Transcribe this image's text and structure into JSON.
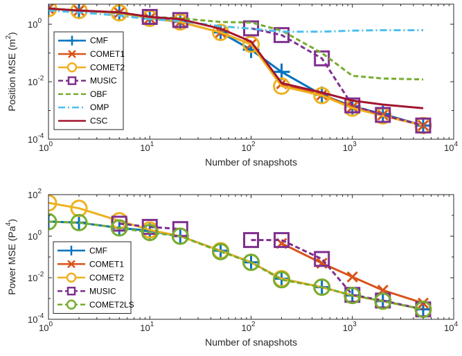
{
  "chart_data": [
    {
      "type": "line",
      "xlabel": "Number of snapshots",
      "ylabel": "Position MSE (m",
      "ylabel_unit_exp": "2",
      "ylabel_close": ")",
      "xscale": "log",
      "yscale": "log",
      "xlim": [
        1,
        10000
      ],
      "ylim": [
        0.0001,
        5
      ],
      "xticks": [
        {
          "base": "10",
          "exp": "0",
          "value": 1
        },
        {
          "base": "10",
          "exp": "1",
          "value": 10
        },
        {
          "base": "10",
          "exp": "2",
          "value": 100
        },
        {
          "base": "10",
          "exp": "3",
          "value": 1000
        },
        {
          "base": "10",
          "exp": "4",
          "value": 10000
        }
      ],
      "yticks": [
        {
          "base": "10",
          "exp": "0",
          "value": 1
        },
        {
          "base": "10",
          "exp": "-2",
          "value": 0.01
        },
        {
          "base": "10",
          "exp": "-4",
          "value": 0.0001
        }
      ],
      "grid": false,
      "legend_position": "bottom-left",
      "x": [
        1,
        2,
        5,
        10,
        20,
        50,
        100,
        200,
        500,
        1000,
        2000,
        5000
      ],
      "series": [
        {
          "name": "CMF",
          "color": "#0072bd",
          "dash": "solid",
          "marker": "plus",
          "values": [
            3.5,
            3.0,
            2.5,
            1.6,
            1.2,
            0.52,
            0.13,
            0.022,
            0.0035,
            0.0014,
            0.00075,
            0.0003
          ]
        },
        {
          "name": "COMET1",
          "color": "#d95319",
          "dash": "solid",
          "marker": "x",
          "values": [
            3.5,
            3.0,
            2.5,
            1.6,
            1.2,
            0.52,
            0.2,
            0.0085,
            0.0035,
            0.0013,
            0.0007,
            0.0003
          ]
        },
        {
          "name": "COMET2",
          "color": "#edb120",
          "dash": "solid",
          "marker": "circle",
          "values": [
            3.5,
            3.0,
            2.5,
            1.6,
            1.2,
            0.52,
            0.2,
            0.007,
            0.0033,
            0.0012,
            0.00065,
            0.0003
          ]
        },
        {
          "name": "MUSIC",
          "color": "#7e2f8e",
          "dash": "dash",
          "marker": "square",
          "values": [
            null,
            null,
            null,
            1.8,
            1.4,
            null,
            0.72,
            0.42,
            0.065,
            0.0015,
            0.0007,
            0.0003
          ]
        },
        {
          "name": "OBF",
          "color": "#77ac30",
          "dash": "dash",
          "marker": "none",
          "values": [
            3.5,
            3.0,
            2.5,
            1.8,
            1.6,
            1.2,
            1.15,
            0.6,
            0.1,
            0.016,
            0.013,
            0.012
          ]
        },
        {
          "name": "OMP",
          "color": "#4dbeee",
          "dash": "dashdot",
          "marker": "none",
          "values": [
            3.0,
            2.6,
            2.0,
            1.5,
            1.3,
            0.85,
            0.7,
            0.55,
            0.55,
            0.6,
            0.62,
            0.62
          ]
        },
        {
          "name": "CSC",
          "color": "#a2142f",
          "dash": "solid",
          "marker": "none",
          "values": [
            3.5,
            3.0,
            2.6,
            1.8,
            1.5,
            0.7,
            0.25,
            0.009,
            0.0042,
            0.0022,
            0.0016,
            0.0012
          ]
        }
      ]
    },
    {
      "type": "line",
      "xlabel": "Number of snapshots",
      "ylabel": "Power MSE (Pa",
      "ylabel_unit_exp": "4",
      "ylabel_close": ")",
      "xscale": "log",
      "yscale": "log",
      "xlim": [
        1,
        10000
      ],
      "ylim": [
        0.0001,
        100
      ],
      "xticks": [
        {
          "base": "10",
          "exp": "0",
          "value": 1
        },
        {
          "base": "10",
          "exp": "1",
          "value": 10
        },
        {
          "base": "10",
          "exp": "2",
          "value": 100
        },
        {
          "base": "10",
          "exp": "3",
          "value": 1000
        },
        {
          "base": "10",
          "exp": "4",
          "value": 10000
        }
      ],
      "yticks": [
        {
          "base": "10",
          "exp": "2",
          "value": 100
        },
        {
          "base": "10",
          "exp": "0",
          "value": 1
        },
        {
          "base": "10",
          "exp": "-2",
          "value": 0.01
        },
        {
          "base": "10",
          "exp": "-4",
          "value": 0.0001
        }
      ],
      "grid": false,
      "legend_position": "bottom-left",
      "x": [
        1,
        2,
        5,
        10,
        20,
        50,
        100,
        200,
        500,
        1000,
        2000,
        5000
      ],
      "series": [
        {
          "name": "CMF",
          "color": "#0072bd",
          "dash": "solid",
          "marker": "plus",
          "values": [
            5.0,
            4.5,
            2.5,
            1.8,
            1.0,
            0.2,
            0.055,
            0.009,
            0.0035,
            0.0014,
            0.00075,
            0.0003
          ]
        },
        {
          "name": "COMET1",
          "color": "#d95319",
          "dash": "solid",
          "marker": "x",
          "values": [
            null,
            null,
            null,
            null,
            null,
            null,
            null,
            0.45,
            0.05,
            0.011,
            0.0025,
            0.0006
          ]
        },
        {
          "name": "COMET2",
          "color": "#edb120",
          "dash": "solid",
          "marker": "circle",
          "values": [
            40,
            22,
            5.5,
            2.0,
            1.0,
            0.2,
            0.055,
            0.009,
            0.0035,
            0.0014,
            0.00075,
            0.0003
          ]
        },
        {
          "name": "MUSIC",
          "color": "#7e2f8e",
          "dash": "dash",
          "marker": "square",
          "values": [
            null,
            null,
            4.0,
            2.8,
            2.2,
            null,
            0.65,
            0.65,
            0.08,
            0.0015,
            0.0008,
            0.0003
          ]
        },
        {
          "name": "COMET2LS",
          "color": "#77ac30",
          "dash": "dash",
          "marker": "circle",
          "values": [
            5.0,
            4.5,
            2.5,
            1.5,
            1.0,
            0.18,
            0.055,
            0.008,
            0.0035,
            0.0014,
            0.00075,
            0.0003
          ]
        }
      ]
    }
  ]
}
